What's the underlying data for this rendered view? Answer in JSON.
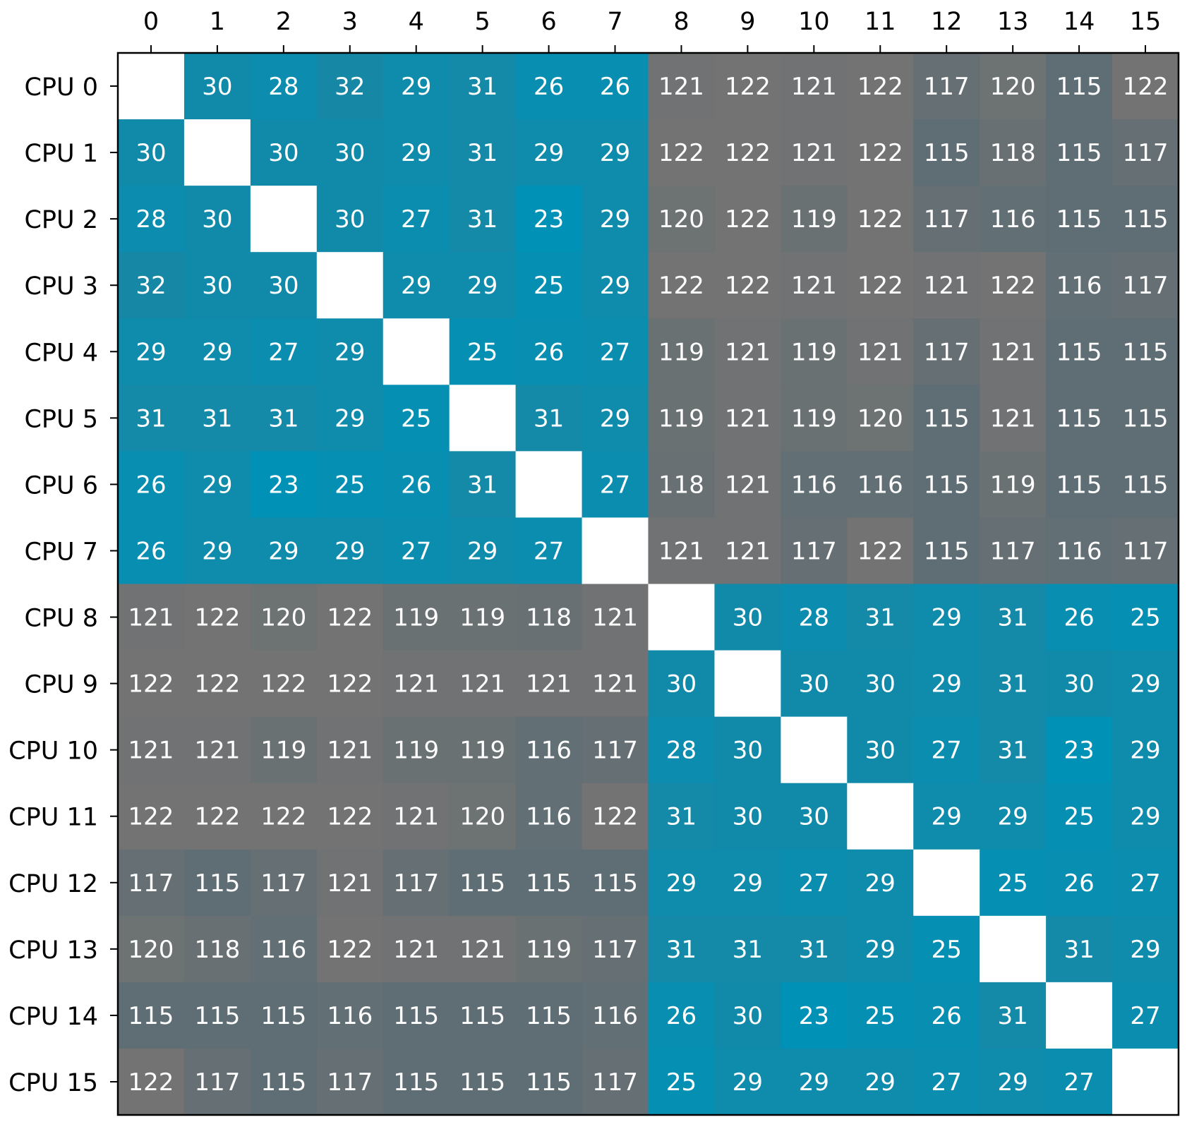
{
  "chart_data": {
    "type": "heatmap",
    "title": "",
    "xlabel": "",
    "ylabel": "",
    "x_tick_labels": [
      "0",
      "1",
      "2",
      "3",
      "4",
      "5",
      "6",
      "7",
      "8",
      "9",
      "10",
      "11",
      "12",
      "13",
      "14",
      "15"
    ],
    "y_tick_labels": [
      "CPU 0",
      "CPU 1",
      "CPU 2",
      "CPU 3",
      "CPU 4",
      "CPU 5",
      "CPU 6",
      "CPU 7",
      "CPU 8",
      "CPU 9",
      "CPU 10",
      "CPU 11",
      "CPU 12",
      "CPU 13",
      "CPU 14",
      "CPU 15"
    ],
    "x_axis_position": "top",
    "diagonal": "blank",
    "colors": {
      "low": "#0091b7",
      "low_high": "#1688a6",
      "high_low": "#5f6e74",
      "high": "#737373",
      "diagonal": "#ffffff",
      "text": "#ffffff"
    },
    "grid": false,
    "values": [
      [
        null,
        30,
        28,
        32,
        29,
        31,
        26,
        26,
        121,
        122,
        121,
        122,
        117,
        120,
        115,
        122
      ],
      [
        30,
        null,
        30,
        30,
        29,
        31,
        29,
        29,
        122,
        122,
        121,
        122,
        115,
        118,
        115,
        117
      ],
      [
        28,
        30,
        null,
        30,
        27,
        31,
        23,
        29,
        120,
        122,
        119,
        122,
        117,
        116,
        115,
        115
      ],
      [
        32,
        30,
        30,
        null,
        29,
        29,
        25,
        29,
        122,
        122,
        121,
        122,
        121,
        122,
        116,
        117
      ],
      [
        29,
        29,
        27,
        29,
        null,
        25,
        26,
        27,
        119,
        121,
        119,
        121,
        117,
        121,
        115,
        115
      ],
      [
        31,
        31,
        31,
        29,
        25,
        null,
        31,
        29,
        119,
        121,
        119,
        120,
        115,
        121,
        115,
        115
      ],
      [
        26,
        29,
        23,
        25,
        26,
        31,
        null,
        27,
        118,
        121,
        116,
        116,
        115,
        119,
        115,
        115
      ],
      [
        26,
        29,
        29,
        29,
        27,
        29,
        27,
        null,
        121,
        121,
        117,
        122,
        115,
        117,
        116,
        117
      ],
      [
        121,
        122,
        120,
        122,
        119,
        119,
        118,
        121,
        null,
        30,
        28,
        31,
        29,
        31,
        26,
        25
      ],
      [
        122,
        122,
        122,
        122,
        121,
        121,
        121,
        121,
        30,
        null,
        30,
        30,
        29,
        31,
        30,
        29
      ],
      [
        121,
        121,
        119,
        121,
        119,
        119,
        116,
        117,
        28,
        30,
        null,
        30,
        27,
        31,
        23,
        29
      ],
      [
        122,
        122,
        122,
        122,
        121,
        120,
        116,
        122,
        31,
        30,
        30,
        null,
        29,
        29,
        25,
        29
      ],
      [
        117,
        115,
        117,
        121,
        117,
        115,
        115,
        115,
        29,
        29,
        27,
        29,
        null,
        25,
        26,
        27
      ],
      [
        120,
        118,
        116,
        122,
        121,
        121,
        119,
        117,
        31,
        31,
        31,
        29,
        25,
        null,
        31,
        29
      ],
      [
        115,
        115,
        115,
        116,
        115,
        115,
        115,
        116,
        26,
        30,
        23,
        25,
        26,
        31,
        null,
        27
      ],
      [
        122,
        117,
        115,
        117,
        115,
        115,
        115,
        117,
        25,
        29,
        29,
        29,
        27,
        29,
        27,
        null
      ]
    ]
  }
}
